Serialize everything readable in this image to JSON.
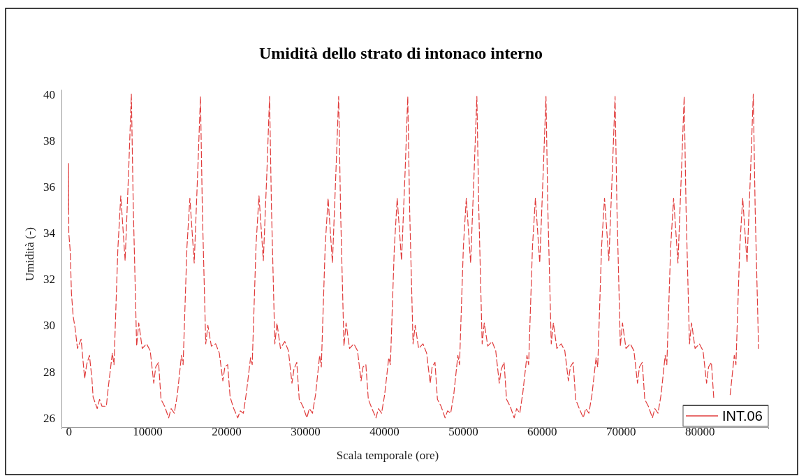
{
  "chart_data": {
    "type": "line",
    "title": "Umidità dello strato di intonaco interno",
    "xlabel": "Scala temporale (ore)",
    "ylabel": "Umidità (-)",
    "xlim": [
      -900,
      88700
    ],
    "xticks": [
      0,
      10000,
      20000,
      30000,
      40000,
      50000,
      60000,
      70000,
      80000
    ],
    "ylim": [
      25.6,
      40.2
    ],
    "yticks": [
      26,
      28,
      30,
      32,
      34,
      36,
      38,
      40
    ],
    "grid": false,
    "legend": "bottom right",
    "line_style": "dashed",
    "marker": "none",
    "series": [
      {
        "name": "INT.06",
        "color": "#e03c3c",
        "x": [
          0,
          10,
          30,
          213,
          366,
          580,
          823,
          1130,
          1590,
          2040,
          2290,
          2650,
          2960,
          3110,
          3630,
          3930,
          4240,
          4790,
          5030,
          5550,
          5760,
          6250,
          6620,
          7170,
          7630,
          7960,
          8200,
          8630,
          8900,
          9340,
          9890,
          10350,
          10800,
          11050,
          11410,
          11720,
          12180,
          12690,
          13000,
          13400,
          13790,
          14310,
          14520,
          15010,
          15380,
          15930,
          16390,
          16720,
          16960,
          17390,
          17660,
          18100,
          18650,
          19110,
          19560,
          19810,
          20170,
          20480,
          20940,
          21450,
          21760,
          22160,
          22550,
          23070,
          23280,
          23770,
          24140,
          24690,
          25150,
          25480,
          25720,
          26150,
          26420,
          26860,
          27410,
          27870,
          28320,
          28570,
          28930,
          29240,
          29700,
          30210,
          30520,
          30920,
          31310,
          31830,
          32040,
          32530,
          32900,
          33450,
          33910,
          34240,
          34480,
          34910,
          35180,
          35620,
          36170,
          36630,
          37080,
          37330,
          37690,
          38000,
          38460,
          38970,
          39280,
          39680,
          40070,
          40590,
          40800,
          41290,
          41660,
          42210,
          42670,
          43000,
          43240,
          43670,
          43940,
          44380,
          44930,
          45390,
          45840,
          46090,
          46450,
          46760,
          47220,
          47730,
          48040,
          48440,
          48830,
          49350,
          49560,
          50050,
          50420,
          50970,
          51430,
          51760,
          52000,
          52430,
          52700,
          53140,
          53690,
          54150,
          54600,
          54850,
          55210,
          55520,
          55980,
          56490,
          56800,
          57200,
          57590,
          58110,
          58320,
          58810,
          59180,
          59730,
          60190,
          60520,
          60760,
          61190,
          61460,
          61900,
          62450,
          62910,
          63360,
          63610,
          63970,
          64280,
          64740,
          65250,
          65560,
          65960,
          66350,
          66870,
          67080,
          67570,
          67940,
          68490,
          68950,
          69280,
          69520,
          69950,
          70220,
          70660,
          71210,
          71670,
          72120,
          72370,
          72730,
          73040,
          73500,
          74010,
          74320,
          74720,
          75110,
          75630,
          75840,
          76330,
          76700,
          77250,
          77710,
          78040,
          78280,
          78710,
          78980,
          79420,
          79970,
          80430,
          80880,
          81130,
          81490,
          81800,
          82260,
          82770,
          83080,
          83480,
          83870,
          84390,
          84600,
          85090,
          85460,
          86010,
          86470,
          86800,
          87040,
          87470
        ],
        "values": [
          35.0,
          37.0,
          34.0,
          33.2,
          31.4,
          30.4,
          29.9,
          29.0,
          29.4,
          27.7,
          28.3,
          28.7,
          27.7,
          26.9,
          26.4,
          26.8,
          26.5,
          26.5,
          27.3,
          28.8,
          28.3,
          33.3,
          35.6,
          32.8,
          36.8,
          40.0,
          35.2,
          29.1,
          30.1,
          29.0,
          29.2,
          28.9,
          27.5,
          28.2,
          28.4,
          26.8,
          26.5,
          26.0,
          26.4,
          26.2,
          27.0,
          28.7,
          28.3,
          33.4,
          35.5,
          32.7,
          36.8,
          39.9,
          35.0,
          29.2,
          30.0,
          29.1,
          29.2,
          28.8,
          27.6,
          28.2,
          28.3,
          26.9,
          26.4,
          26.0,
          26.3,
          26.2,
          27.1,
          28.6,
          28.3,
          33.5,
          35.6,
          32.8,
          36.7,
          39.9,
          35.1,
          29.2,
          30.1,
          29.0,
          29.3,
          28.9,
          27.5,
          28.1,
          28.4,
          26.8,
          26.5,
          26.0,
          26.4,
          26.2,
          27.0,
          28.7,
          28.2,
          33.4,
          35.5,
          32.7,
          36.8,
          39.9,
          35.0,
          29.1,
          30.1,
          29.0,
          29.2,
          28.9,
          27.6,
          28.2,
          28.3,
          26.8,
          26.4,
          26.0,
          26.4,
          26.2,
          27.0,
          28.6,
          28.3,
          33.3,
          35.5,
          32.8,
          36.7,
          39.9,
          35.0,
          29.2,
          30.0,
          29.0,
          29.2,
          28.8,
          27.5,
          28.2,
          28.4,
          26.8,
          26.5,
          26.0,
          26.3,
          26.2,
          27.0,
          28.7,
          28.3,
          33.4,
          35.5,
          32.7,
          36.8,
          39.9,
          35.1,
          29.2,
          30.1,
          29.1,
          29.3,
          28.9,
          27.5,
          28.1,
          28.4,
          26.8,
          26.5,
          26.0,
          26.4,
          26.2,
          27.1,
          28.7,
          28.3,
          33.4,
          35.5,
          32.7,
          36.8,
          39.9,
          35.0,
          29.2,
          30.1,
          29.0,
          29.2,
          28.9,
          27.6,
          28.2,
          28.4,
          26.8,
          26.4,
          26.0,
          26.4,
          26.2,
          27.0,
          28.6,
          28.2,
          33.4,
          35.5,
          32.8,
          36.8,
          39.9,
          35.0,
          29.1,
          30.1,
          29.0,
          29.2,
          28.9,
          27.5,
          28.2,
          28.4,
          26.8,
          26.5,
          26.0,
          26.4,
          26.2,
          27.0,
          28.7,
          28.3,
          33.4,
          35.5,
          32.7,
          36.8,
          39.9,
          35.0,
          29.2,
          30.1,
          29.0,
          29.2,
          28.9,
          27.5,
          28.2,
          28.4,
          26.8,
          null,
          null,
          null,
          null,
          27.0,
          28.7,
          28.3,
          33.4,
          35.5,
          32.7,
          36.8,
          40.0,
          35.0,
          29.0
        ]
      }
    ]
  }
}
